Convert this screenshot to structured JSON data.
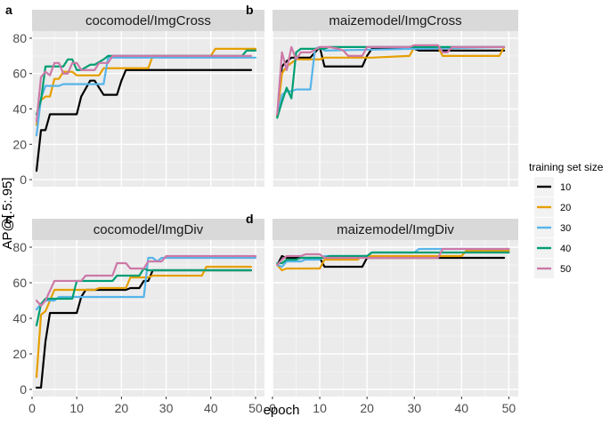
{
  "chart_data": {
    "type": "line",
    "ylabel": "AP@[.5:.95]",
    "xlabel": "epoch",
    "xlim": [
      0,
      52
    ],
    "ylim": [
      -4,
      84
    ],
    "x_ticks": [
      0,
      10,
      20,
      30,
      40,
      50
    ],
    "y_ticks": [
      0,
      20,
      40,
      60,
      80
    ],
    "legend": {
      "title": "training set size",
      "position": "right",
      "entries": [
        {
          "label": "10",
          "color": "#000000"
        },
        {
          "label": "20",
          "color": "#E69F00"
        },
        {
          "label": "30",
          "color": "#56B4E9"
        },
        {
          "label": "40",
          "color": "#009E73"
        },
        {
          "label": "50",
          "color": "#CC79A7"
        }
      ]
    },
    "panels": [
      {
        "letter": "a",
        "title": "cocomodel/ImgCross",
        "show_y_ticks": true,
        "show_x_ticks": false,
        "series": [
          {
            "name": "10",
            "x": [
              1,
              2,
              3,
              4,
              5,
              10,
              11,
              13,
              14,
              16,
              17,
              19,
              20,
              21,
              49
            ],
            "y": [
              5,
              28,
              28,
              37,
              37,
              37,
              47,
              56,
              56,
              48,
              48,
              48,
              56,
              62,
              62
            ]
          },
          {
            "name": "20",
            "x": [
              1,
              2,
              3,
              4,
              5,
              6,
              7,
              9,
              10,
              15,
              16,
              20,
              21,
              26,
              27,
              40,
              41,
              50
            ],
            "y": [
              31,
              45,
              47,
              47,
              57,
              57,
              61,
              61,
              59,
              59,
              63,
              63,
              63,
              63,
              70,
              70,
              74,
              74
            ]
          },
          {
            "name": "30",
            "x": [
              1,
              2,
              3,
              6,
              7,
              14,
              15,
              16,
              17,
              50
            ],
            "y": [
              25,
              46,
              53,
              53,
              54,
              54,
              54,
              54,
              69,
              69
            ]
          },
          {
            "name": "40",
            "x": [
              1,
              2,
              3,
              6,
              7,
              8,
              9,
              10,
              11,
              13,
              14,
              16,
              17,
              47,
              48,
              50
            ],
            "y": [
              37,
              45,
              64,
              64,
              64,
              68,
              68,
              62,
              62,
              65,
              65,
              68,
              70,
              70,
              73,
              73
            ]
          },
          {
            "name": "50",
            "x": [
              1,
              2,
              3,
              4,
              5,
              6,
              7,
              8,
              9,
              10,
              11,
              14,
              15,
              17,
              18,
              49
            ],
            "y": [
              33,
              58,
              61,
              59,
              66,
              66,
              60,
              60,
              66,
              66,
              62,
              62,
              66,
              66,
              70,
              70
            ]
          }
        ]
      },
      {
        "letter": "b",
        "title": "maizemodel/ImgCross",
        "show_y_ticks": false,
        "show_x_ticks": false,
        "series": [
          {
            "name": "10",
            "x": [
              1,
              2,
              3,
              4,
              5,
              6,
              8,
              10,
              11,
              19,
              20,
              21,
              30,
              31,
              49
            ],
            "y": [
              36,
              64,
              67,
              69,
              69,
              69,
              69,
              75,
              64,
              64,
              70,
              74,
              74,
              73,
              73
            ]
          },
          {
            "name": "20",
            "x": [
              1,
              2,
              3,
              5,
              6,
              10,
              11,
              20,
              21,
              29,
              30,
              35,
              36,
              48,
              49
            ],
            "y": [
              36,
              60,
              64,
              68,
              68,
              68,
              69,
              69,
              69,
              70,
              75,
              75,
              70,
              70,
              75
            ]
          },
          {
            "name": "30",
            "x": [
              1,
              2,
              3,
              4,
              5,
              8,
              9,
              10,
              11,
              49
            ],
            "y": [
              35,
              48,
              50,
              50,
              51,
              51,
              74,
              75,
              73,
              75
            ]
          },
          {
            "name": "40",
            "x": [
              1,
              2,
              3,
              4,
              5,
              6,
              7,
              11,
              12,
              49
            ],
            "y": [
              35,
              44,
              52,
              46,
              72,
              74,
              74,
              74,
              75,
              75
            ]
          },
          {
            "name": "50",
            "x": [
              1,
              2,
              3,
              4,
              5,
              6,
              8,
              10,
              12,
              14,
              15,
              16,
              19,
              20,
              29,
              30,
              35,
              36,
              37,
              38,
              49
            ],
            "y": [
              37,
              72,
              62,
              75,
              68,
              72,
              72,
              75,
              75,
              74,
              73,
              70,
              70,
              75,
              75,
              76,
              76,
              72,
              72,
              75,
              75
            ]
          }
        ]
      },
      {
        "letter": "c",
        "title": "cocomodel/ImgDiv",
        "show_y_ticks": true,
        "show_x_ticks": true,
        "series": [
          {
            "name": "10",
            "x": [
              1,
              2,
              3,
              4,
              5,
              10,
              11,
              12,
              21,
              22,
              24,
              25,
              26,
              27,
              49
            ],
            "y": [
              1,
              1,
              27,
              43,
              43,
              43,
              52,
              56,
              56,
              57,
              57,
              61,
              61,
              67,
              67
            ]
          },
          {
            "name": "20",
            "x": [
              1,
              2,
              3,
              4,
              5,
              6,
              14,
              15,
              16,
              21,
              22,
              26,
              27,
              38,
              39,
              49
            ],
            "y": [
              7,
              42,
              44,
              50,
              56,
              56,
              56,
              57,
              57,
              57,
              63,
              63,
              64,
              64,
              69,
              69
            ]
          },
          {
            "name": "30",
            "x": [
              1,
              2,
              3,
              5,
              6,
              20,
              21,
              25,
              26,
              27,
              28,
              29,
              50
            ],
            "y": [
              45,
              48,
              50,
              50,
              52,
              52,
              52,
              52,
              74,
              74,
              72,
              74,
              74
            ]
          },
          {
            "name": "40",
            "x": [
              1,
              2,
              3,
              9,
              10,
              18,
              19,
              24,
              25,
              26,
              49
            ],
            "y": [
              36,
              48,
              51,
              51,
              61,
              61,
              64,
              64,
              68,
              67,
              67
            ]
          },
          {
            "name": "50",
            "x": [
              1,
              2,
              3,
              5,
              6,
              11,
              12,
              18,
              19,
              21,
              22,
              25,
              26,
              29,
              30,
              50
            ],
            "y": [
              50,
              47,
              50,
              61,
              61,
              61,
              64,
              64,
              71,
              71,
              68,
              68,
              72,
              72,
              75,
              75
            ]
          }
        ]
      },
      {
        "letter": "d",
        "title": "maizemodel/ImgDiv",
        "show_y_ticks": false,
        "show_x_ticks": true,
        "series": [
          {
            "name": "10",
            "x": [
              1,
              2,
              3,
              9,
              10,
              11,
              19,
              20,
              49
            ],
            "y": [
              70,
              75,
              74,
              74,
              74,
              69,
              69,
              74,
              74
            ]
          },
          {
            "name": "20",
            "x": [
              1,
              2,
              3,
              9,
              10,
              11,
              12,
              18,
              19,
              40,
              41,
              50
            ],
            "y": [
              70,
              67,
              68,
              68,
              68,
              73,
              73,
              73,
              75,
              75,
              78,
              78
            ]
          },
          {
            "name": "30",
            "x": [
              1,
              2,
              3,
              6,
              7,
              10,
              11,
              20,
              21,
              30,
              31,
              50
            ],
            "y": [
              70,
              69,
              72,
              72,
              73,
              73,
              75,
              75,
              77,
              77,
              79,
              79
            ]
          },
          {
            "name": "40",
            "x": [
              1,
              2,
              3,
              5,
              6,
              11,
              12,
              20,
              21,
              27,
              28,
              50
            ],
            "y": [
              71,
              71,
              73,
              73,
              74,
              74,
              75,
              75,
              77,
              77,
              77,
              77
            ]
          },
          {
            "name": "50",
            "x": [
              1,
              2,
              3,
              6,
              7,
              10,
              11,
              20,
              21,
              35,
              36,
              50
            ],
            "y": [
              70,
              73,
              75,
              75,
              76,
              76,
              74,
              74,
              74,
              74,
              79,
              79
            ]
          }
        ]
      }
    ]
  }
}
